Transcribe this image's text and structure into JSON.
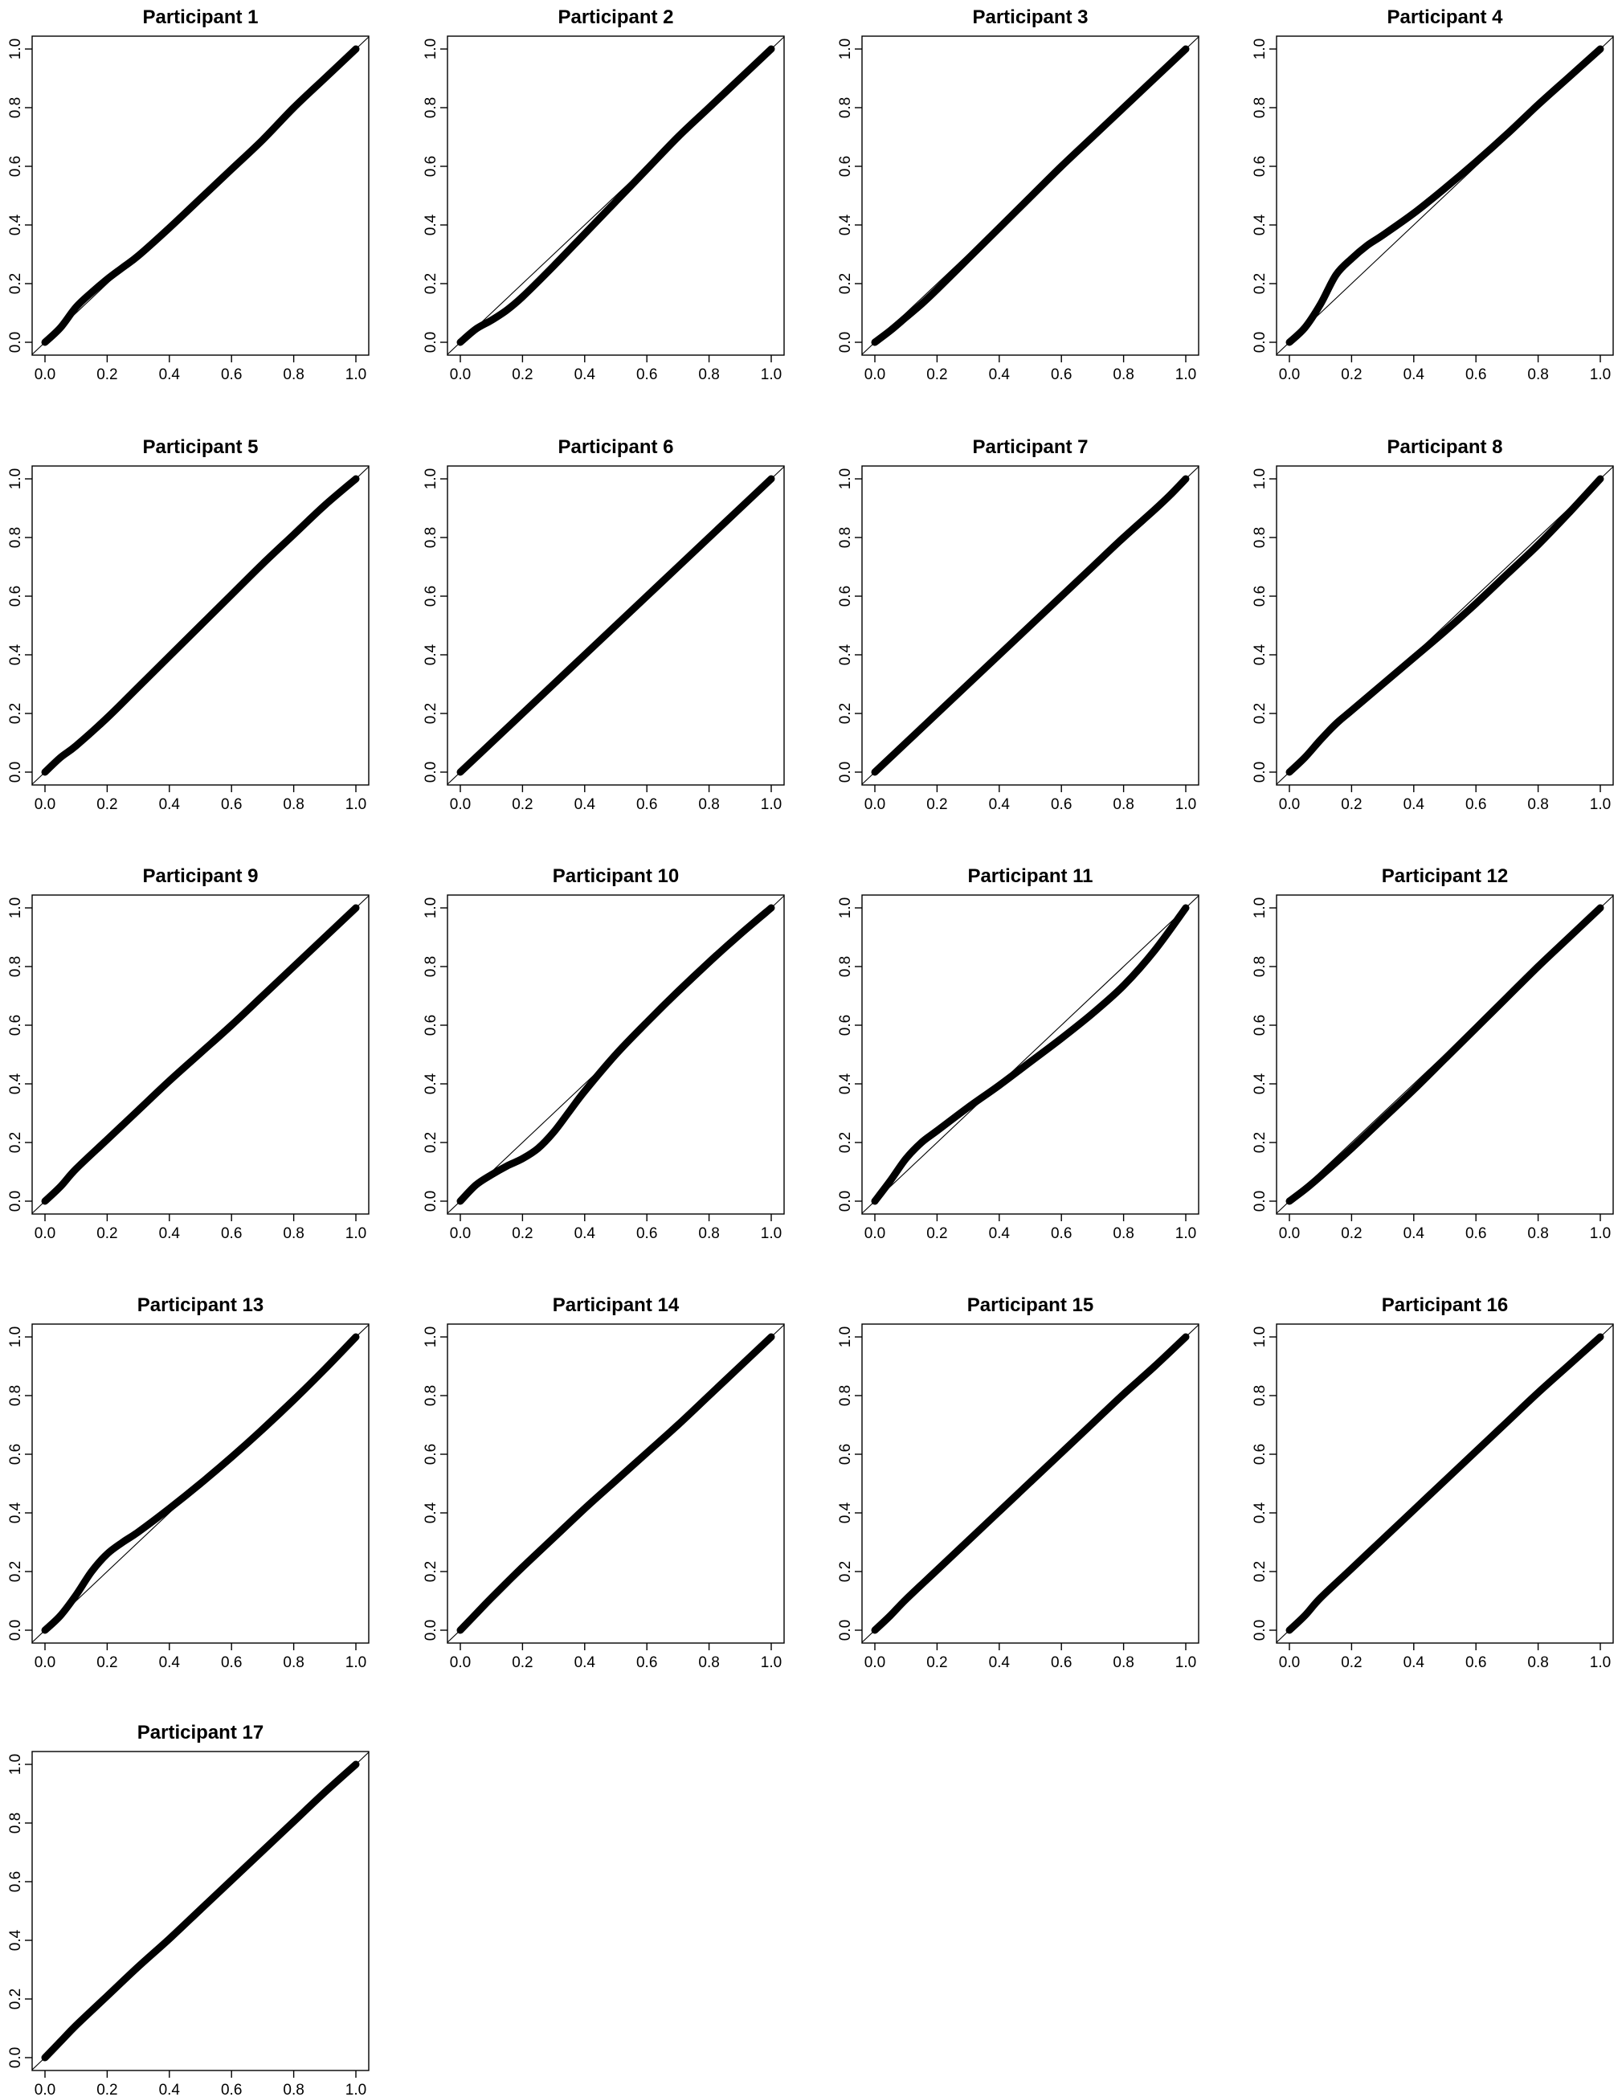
{
  "chart_data": [
    {
      "type": "line",
      "title": "Participant 1",
      "xlim": [
        0,
        1
      ],
      "ylim": [
        0,
        1
      ],
      "x_ticks": [
        "0.0",
        "0.2",
        "0.4",
        "0.6",
        "0.8",
        "1.0"
      ],
      "y_ticks": [
        "0.0",
        "0.2",
        "0.4",
        "0.6",
        "0.8",
        "1.0"
      ],
      "reference_line": "y = x",
      "series": [
        {
          "x": [
            0.0,
            0.05,
            0.1,
            0.15,
            0.2,
            0.25,
            0.3,
            0.4,
            0.5,
            0.6,
            0.7,
            0.8,
            0.9,
            1.0
          ],
          "y": [
            0.0,
            0.05,
            0.12,
            0.17,
            0.215,
            0.255,
            0.295,
            0.39,
            0.49,
            0.59,
            0.69,
            0.8,
            0.9,
            1.0
          ]
        }
      ]
    },
    {
      "type": "line",
      "title": "Participant 2",
      "xlim": [
        0,
        1
      ],
      "ylim": [
        0,
        1
      ],
      "x_ticks": [
        "0.0",
        "0.2",
        "0.4",
        "0.6",
        "0.8",
        "1.0"
      ],
      "y_ticks": [
        "0.0",
        "0.2",
        "0.4",
        "0.6",
        "0.8",
        "1.0"
      ],
      "reference_line": "y = x",
      "series": [
        {
          "x": [
            0.0,
            0.05,
            0.1,
            0.15,
            0.2,
            0.3,
            0.4,
            0.5,
            0.6,
            0.7,
            0.8,
            0.9,
            1.0
          ],
          "y": [
            0.0,
            0.045,
            0.075,
            0.11,
            0.155,
            0.26,
            0.37,
            0.48,
            0.59,
            0.7,
            0.8,
            0.9,
            1.0
          ]
        }
      ]
    },
    {
      "type": "line",
      "title": "Participant 3",
      "xlim": [
        0,
        1
      ],
      "ylim": [
        0,
        1
      ],
      "x_ticks": [
        "0.0",
        "0.2",
        "0.4",
        "0.6",
        "0.8",
        "1.0"
      ],
      "y_ticks": [
        "0.0",
        "0.2",
        "0.4",
        "0.6",
        "0.8",
        "1.0"
      ],
      "reference_line": "y = x",
      "series": [
        {
          "x": [
            0.0,
            0.05,
            0.1,
            0.15,
            0.2,
            0.3,
            0.4,
            0.5,
            0.6,
            0.7,
            0.8,
            0.9,
            1.0
          ],
          "y": [
            0.0,
            0.04,
            0.085,
            0.13,
            0.18,
            0.285,
            0.39,
            0.495,
            0.6,
            0.7,
            0.8,
            0.9,
            1.0
          ]
        }
      ]
    },
    {
      "type": "line",
      "title": "Participant 4",
      "xlim": [
        0,
        1
      ],
      "ylim": [
        0,
        1
      ],
      "x_ticks": [
        "0.0",
        "0.2",
        "0.4",
        "0.6",
        "0.8",
        "1.0"
      ],
      "y_ticks": [
        "0.0",
        "0.2",
        "0.4",
        "0.6",
        "0.8",
        "1.0"
      ],
      "reference_line": "y = x",
      "series": [
        {
          "x": [
            0.0,
            0.05,
            0.1,
            0.15,
            0.2,
            0.25,
            0.3,
            0.4,
            0.5,
            0.6,
            0.7,
            0.8,
            0.9,
            1.0
          ],
          "y": [
            0.0,
            0.05,
            0.13,
            0.23,
            0.285,
            0.33,
            0.365,
            0.44,
            0.525,
            0.615,
            0.71,
            0.81,
            0.905,
            1.0
          ]
        }
      ]
    },
    {
      "type": "line",
      "title": "Participant 5",
      "xlim": [
        0,
        1
      ],
      "ylim": [
        0,
        1
      ],
      "x_ticks": [
        "0.0",
        "0.2",
        "0.4",
        "0.6",
        "0.8",
        "1.0"
      ],
      "y_ticks": [
        "0.0",
        "0.2",
        "0.4",
        "0.6",
        "0.8",
        "1.0"
      ],
      "reference_line": "y = x",
      "series": [
        {
          "x": [
            0.0,
            0.05,
            0.1,
            0.2,
            0.3,
            0.4,
            0.5,
            0.6,
            0.7,
            0.8,
            0.9,
            1.0
          ],
          "y": [
            0.0,
            0.05,
            0.09,
            0.185,
            0.29,
            0.395,
            0.5,
            0.605,
            0.71,
            0.81,
            0.91,
            1.0
          ]
        }
      ]
    },
    {
      "type": "line",
      "title": "Participant 6",
      "xlim": [
        0,
        1
      ],
      "ylim": [
        0,
        1
      ],
      "x_ticks": [
        "0.0",
        "0.2",
        "0.4",
        "0.6",
        "0.8",
        "1.0"
      ],
      "y_ticks": [
        "0.0",
        "0.2",
        "0.4",
        "0.6",
        "0.8",
        "1.0"
      ],
      "reference_line": "y = x",
      "series": [
        {
          "x": [
            0.0,
            0.05,
            0.1,
            0.2,
            0.3,
            0.4,
            0.5,
            0.6,
            0.7,
            0.8,
            0.9,
            1.0
          ],
          "y": [
            0.0,
            0.05,
            0.1,
            0.2,
            0.3,
            0.4,
            0.5,
            0.6,
            0.7,
            0.8,
            0.9,
            1.0
          ]
        }
      ]
    },
    {
      "type": "line",
      "title": "Participant 7",
      "xlim": [
        0,
        1
      ],
      "ylim": [
        0,
        1
      ],
      "x_ticks": [
        "0.0",
        "0.2",
        "0.4",
        "0.6",
        "0.8",
        "1.0"
      ],
      "y_ticks": [
        "0.0",
        "0.2",
        "0.4",
        "0.6",
        "0.8",
        "1.0"
      ],
      "reference_line": "y = x",
      "series": [
        {
          "x": [
            0.0,
            0.05,
            0.1,
            0.2,
            0.3,
            0.4,
            0.5,
            0.6,
            0.7,
            0.8,
            0.9,
            0.95,
            1.0
          ],
          "y": [
            0.0,
            0.05,
            0.1,
            0.2,
            0.3,
            0.4,
            0.5,
            0.6,
            0.7,
            0.8,
            0.895,
            0.945,
            1.0
          ]
        }
      ]
    },
    {
      "type": "line",
      "title": "Participant 8",
      "xlim": [
        0,
        1
      ],
      "ylim": [
        0,
        1
      ],
      "x_ticks": [
        "0.0",
        "0.2",
        "0.4",
        "0.6",
        "0.8",
        "1.0"
      ],
      "y_ticks": [
        "0.0",
        "0.2",
        "0.4",
        "0.6",
        "0.8",
        "1.0"
      ],
      "reference_line": "y = x",
      "series": [
        {
          "x": [
            0.0,
            0.05,
            0.1,
            0.15,
            0.2,
            0.3,
            0.4,
            0.5,
            0.6,
            0.7,
            0.8,
            0.9,
            1.0
          ],
          "y": [
            0.0,
            0.05,
            0.11,
            0.165,
            0.21,
            0.3,
            0.39,
            0.48,
            0.575,
            0.675,
            0.775,
            0.885,
            1.0
          ]
        }
      ]
    },
    {
      "type": "line",
      "title": "Participant 9",
      "xlim": [
        0,
        1
      ],
      "ylim": [
        0,
        1
      ],
      "x_ticks": [
        "0.0",
        "0.2",
        "0.4",
        "0.6",
        "0.8",
        "1.0"
      ],
      "y_ticks": [
        "0.0",
        "0.2",
        "0.4",
        "0.6",
        "0.8",
        "1.0"
      ],
      "reference_line": "y = x",
      "series": [
        {
          "x": [
            0.0,
            0.05,
            0.1,
            0.2,
            0.3,
            0.4,
            0.5,
            0.6,
            0.7,
            0.8,
            0.9,
            1.0
          ],
          "y": [
            0.0,
            0.05,
            0.11,
            0.21,
            0.31,
            0.41,
            0.505,
            0.6,
            0.7,
            0.8,
            0.9,
            1.0
          ]
        }
      ]
    },
    {
      "type": "line",
      "title": "Participant 10",
      "xlim": [
        0,
        1
      ],
      "ylim": [
        0,
        1
      ],
      "x_ticks": [
        "0.0",
        "0.2",
        "0.4",
        "0.6",
        "0.8",
        "1.0"
      ],
      "y_ticks": [
        "0.0",
        "0.2",
        "0.4",
        "0.6",
        "0.8",
        "1.0"
      ],
      "reference_line": "y = x",
      "series": [
        {
          "x": [
            0.0,
            0.05,
            0.1,
            0.15,
            0.2,
            0.25,
            0.3,
            0.35,
            0.4,
            0.5,
            0.6,
            0.7,
            0.8,
            0.9,
            1.0
          ],
          "y": [
            0.0,
            0.055,
            0.09,
            0.12,
            0.145,
            0.18,
            0.235,
            0.305,
            0.375,
            0.5,
            0.61,
            0.715,
            0.815,
            0.91,
            1.0
          ]
        }
      ]
    },
    {
      "type": "line",
      "title": "Participant 11",
      "xlim": [
        0,
        1
      ],
      "ylim": [
        0,
        1
      ],
      "x_ticks": [
        "0.0",
        "0.2",
        "0.4",
        "0.6",
        "0.8",
        "1.0"
      ],
      "y_ticks": [
        "0.0",
        "0.2",
        "0.4",
        "0.6",
        "0.8",
        "1.0"
      ],
      "reference_line": "y = x",
      "series": [
        {
          "x": [
            0.0,
            0.05,
            0.1,
            0.15,
            0.2,
            0.3,
            0.4,
            0.5,
            0.6,
            0.7,
            0.8,
            0.9,
            1.0
          ],
          "y": [
            0.0,
            0.07,
            0.145,
            0.2,
            0.24,
            0.32,
            0.395,
            0.475,
            0.555,
            0.64,
            0.735,
            0.855,
            1.0
          ]
        }
      ]
    },
    {
      "type": "line",
      "title": "Participant 12",
      "xlim": [
        0,
        1
      ],
      "ylim": [
        0,
        1
      ],
      "x_ticks": [
        "0.0",
        "0.2",
        "0.4",
        "0.6",
        "0.8",
        "1.0"
      ],
      "y_ticks": [
        "0.0",
        "0.2",
        "0.4",
        "0.6",
        "0.8",
        "1.0"
      ],
      "reference_line": "y = x",
      "series": [
        {
          "x": [
            0.0,
            0.05,
            0.1,
            0.2,
            0.3,
            0.4,
            0.5,
            0.6,
            0.7,
            0.8,
            0.9,
            1.0
          ],
          "y": [
            0.0,
            0.04,
            0.085,
            0.18,
            0.28,
            0.38,
            0.485,
            0.59,
            0.695,
            0.8,
            0.9,
            1.0
          ]
        }
      ]
    },
    {
      "type": "line",
      "title": "Participant 13",
      "xlim": [
        0,
        1
      ],
      "ylim": [
        0,
        1
      ],
      "x_ticks": [
        "0.0",
        "0.2",
        "0.4",
        "0.6",
        "0.8",
        "1.0"
      ],
      "y_ticks": [
        "0.0",
        "0.2",
        "0.4",
        "0.6",
        "0.8",
        "1.0"
      ],
      "reference_line": "y = x",
      "series": [
        {
          "x": [
            0.0,
            0.05,
            0.1,
            0.15,
            0.2,
            0.25,
            0.3,
            0.4,
            0.5,
            0.6,
            0.7,
            0.8,
            0.9,
            1.0
          ],
          "y": [
            0.0,
            0.05,
            0.12,
            0.2,
            0.26,
            0.3,
            0.335,
            0.415,
            0.5,
            0.59,
            0.685,
            0.785,
            0.89,
            1.0
          ]
        }
      ]
    },
    {
      "type": "line",
      "title": "Participant 14",
      "xlim": [
        0,
        1
      ],
      "ylim": [
        0,
        1
      ],
      "x_ticks": [
        "0.0",
        "0.2",
        "0.4",
        "0.6",
        "0.8",
        "1.0"
      ],
      "y_ticks": [
        "0.0",
        "0.2",
        "0.4",
        "0.6",
        "0.8",
        "1.0"
      ],
      "reference_line": "y = x",
      "series": [
        {
          "x": [
            0.0,
            0.05,
            0.1,
            0.2,
            0.3,
            0.4,
            0.5,
            0.6,
            0.7,
            0.8,
            0.9,
            1.0
          ],
          "y": [
            0.0,
            0.055,
            0.11,
            0.215,
            0.315,
            0.415,
            0.51,
            0.605,
            0.7,
            0.8,
            0.9,
            1.0
          ]
        }
      ]
    },
    {
      "type": "line",
      "title": "Participant 15",
      "xlim": [
        0,
        1
      ],
      "ylim": [
        0,
        1
      ],
      "x_ticks": [
        "0.0",
        "0.2",
        "0.4",
        "0.6",
        "0.8",
        "1.0"
      ],
      "y_ticks": [
        "0.0",
        "0.2",
        "0.4",
        "0.6",
        "0.8",
        "1.0"
      ],
      "reference_line": "y = x",
      "series": [
        {
          "x": [
            0.0,
            0.05,
            0.1,
            0.2,
            0.3,
            0.4,
            0.5,
            0.6,
            0.7,
            0.8,
            0.9,
            1.0
          ],
          "y": [
            0.0,
            0.05,
            0.105,
            0.205,
            0.305,
            0.405,
            0.505,
            0.605,
            0.705,
            0.805,
            0.9,
            1.0
          ]
        }
      ]
    },
    {
      "type": "line",
      "title": "Participant 16",
      "xlim": [
        0,
        1
      ],
      "ylim": [
        0,
        1
      ],
      "x_ticks": [
        "0.0",
        "0.2",
        "0.4",
        "0.6",
        "0.8",
        "1.0"
      ],
      "y_ticks": [
        "0.0",
        "0.2",
        "0.4",
        "0.6",
        "0.8",
        "1.0"
      ],
      "reference_line": "y = x",
      "series": [
        {
          "x": [
            0.0,
            0.05,
            0.1,
            0.2,
            0.3,
            0.4,
            0.5,
            0.6,
            0.7,
            0.8,
            0.9,
            1.0
          ],
          "y": [
            0.0,
            0.05,
            0.11,
            0.21,
            0.31,
            0.41,
            0.51,
            0.61,
            0.71,
            0.81,
            0.905,
            1.0
          ]
        }
      ]
    },
    {
      "type": "line",
      "title": "Participant 17",
      "xlim": [
        0,
        1
      ],
      "ylim": [
        0,
        1
      ],
      "x_ticks": [
        "0.0",
        "0.2",
        "0.4",
        "0.6",
        "0.8",
        "1.0"
      ],
      "y_ticks": [
        "0.0",
        "0.2",
        "0.4",
        "0.6",
        "0.8",
        "1.0"
      ],
      "reference_line": "y = x",
      "series": [
        {
          "x": [
            0.0,
            0.05,
            0.1,
            0.2,
            0.3,
            0.4,
            0.5,
            0.6,
            0.7,
            0.8,
            0.9,
            1.0
          ],
          "y": [
            0.0,
            0.055,
            0.11,
            0.21,
            0.31,
            0.405,
            0.505,
            0.605,
            0.705,
            0.805,
            0.905,
            1.0
          ]
        }
      ]
    }
  ]
}
